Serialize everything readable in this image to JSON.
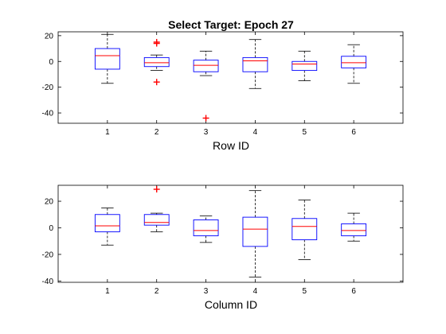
{
  "figure": {
    "title": "Select Target: Epoch 27",
    "colors": {
      "box": "#0000ff",
      "median": "#ff0000",
      "outlier": "#ff0000",
      "whisker": "#000000",
      "axes": "#000000",
      "background": "#ffffff"
    }
  },
  "chart_data": [
    {
      "type": "boxplot",
      "title": "Select Target: Epoch 27",
      "xlabel": "Row ID",
      "ylabel": "",
      "categories": [
        "1",
        "2",
        "3",
        "4",
        "5",
        "6"
      ],
      "ylim": [
        -48,
        23
      ],
      "yticks": [
        20,
        0,
        -20,
        -40
      ],
      "ytick_labels": [
        "20",
        "0",
        "-20",
        "-40"
      ],
      "grid": false,
      "boxes": [
        {
          "whisker_low": -17,
          "q1": -6,
          "median": 4.5,
          "q3": 10,
          "whisker_high": 21,
          "outliers": []
        },
        {
          "whisker_low": -7,
          "q1": -4,
          "median": -1,
          "q3": 3,
          "whisker_high": 5,
          "outliers": [
            15,
            14,
            -16
          ]
        },
        {
          "whisker_low": -11,
          "q1": -8,
          "median": -3,
          "q3": 1,
          "whisker_high": 8,
          "outliers": [
            -44
          ]
        },
        {
          "whisker_low": -21,
          "q1": -8,
          "median": 0.5,
          "q3": 3,
          "whisker_high": 17,
          "outliers": []
        },
        {
          "whisker_low": -15,
          "q1": -7,
          "median": -2,
          "q3": 0,
          "whisker_high": 8,
          "outliers": []
        },
        {
          "whisker_low": -17,
          "q1": -5,
          "median": -1,
          "q3": 4,
          "whisker_high": 13,
          "outliers": []
        }
      ]
    },
    {
      "type": "boxplot",
      "title": "",
      "xlabel": "Column ID",
      "ylabel": "",
      "categories": [
        "1",
        "2",
        "3",
        "4",
        "5",
        "6"
      ],
      "ylim": [
        -41,
        32
      ],
      "yticks": [
        20,
        0,
        -20,
        -40
      ],
      "ytick_labels": [
        "20",
        "0",
        "-20",
        "-40"
      ],
      "grid": false,
      "boxes": [
        {
          "whisker_low": -13,
          "q1": -3,
          "median": 1.5,
          "q3": 10,
          "whisker_high": 15,
          "outliers": []
        },
        {
          "whisker_low": -3,
          "q1": 2,
          "median": 4,
          "q3": 10,
          "whisker_high": 11,
          "outliers": [
            29
          ]
        },
        {
          "whisker_low": -11,
          "q1": -6,
          "median": -2,
          "q3": 6,
          "whisker_high": 9,
          "outliers": []
        },
        {
          "whisker_low": -37,
          "q1": -14,
          "median": -1,
          "q3": 8,
          "whisker_high": 28,
          "outliers": []
        },
        {
          "whisker_low": -24,
          "q1": -9,
          "median": 1,
          "q3": 7,
          "whisker_high": 21,
          "outliers": []
        },
        {
          "whisker_low": -10,
          "q1": -6,
          "median": -2,
          "q3": 3,
          "whisker_high": 11,
          "outliers": []
        }
      ]
    }
  ]
}
